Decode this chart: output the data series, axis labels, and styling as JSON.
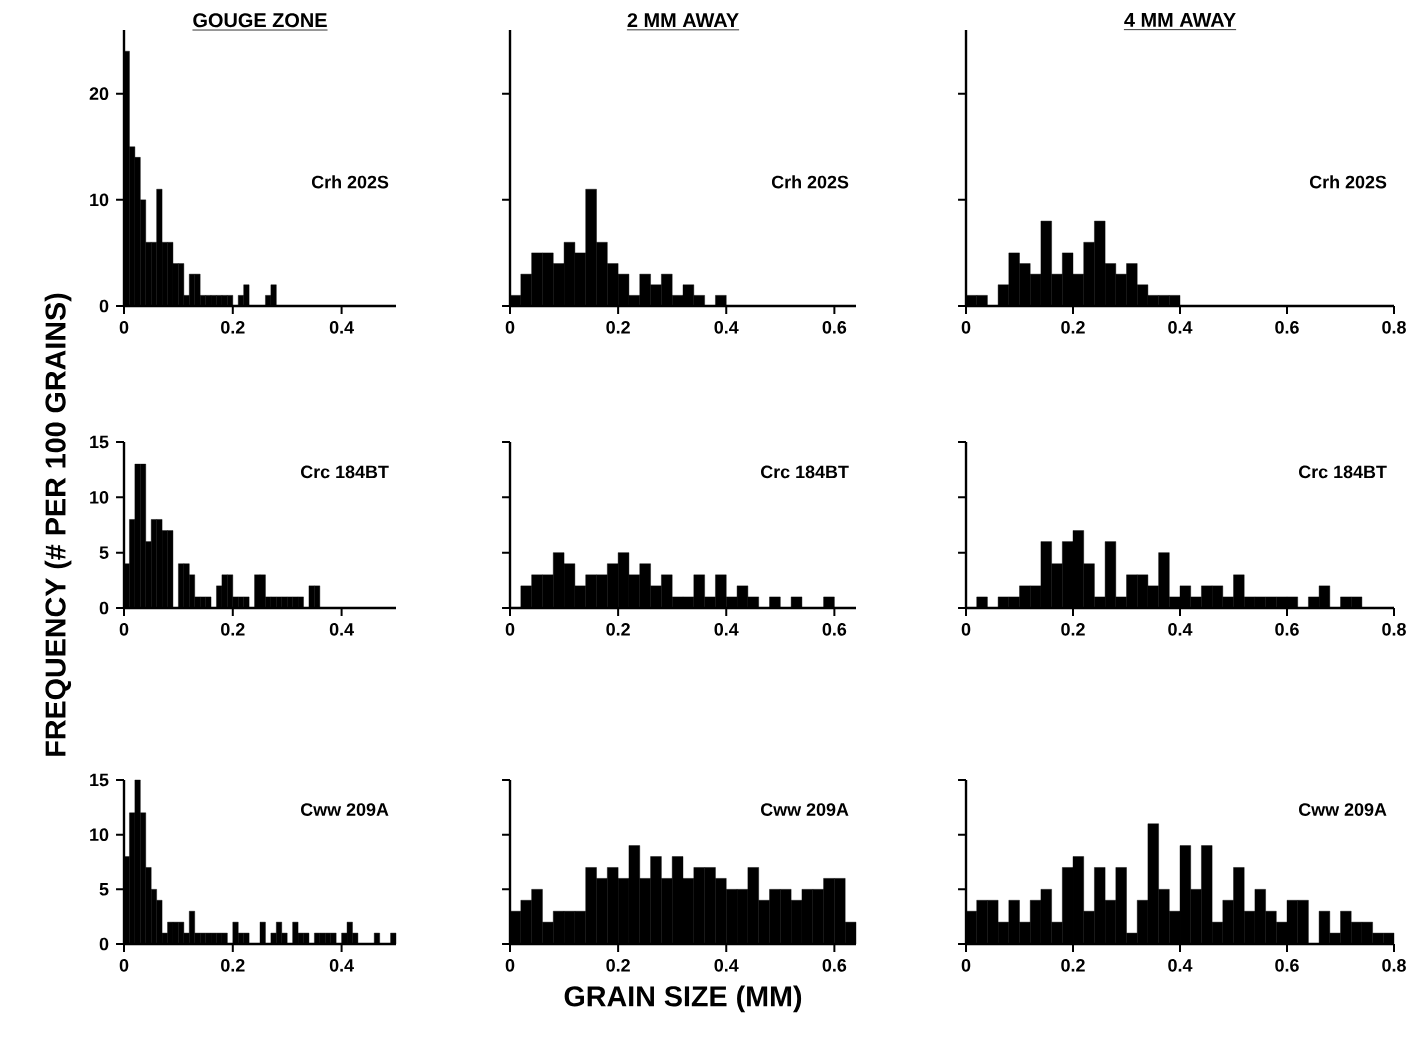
{
  "chart_data": [
    {
      "type": "histogram",
      "title": "GOUGE ZONE",
      "annotations": [
        "Crh 202S"
      ],
      "color": "#000000",
      "xlim": [
        0,
        0.5
      ],
      "xticks": [
        0,
        0.2,
        0.4
      ],
      "ylim": [
        0,
        26
      ],
      "yticks": [
        0,
        10,
        20
      ],
      "bins": [
        0,
        0.01,
        0.02,
        0.03,
        0.04,
        0.05,
        0.06,
        0.07,
        0.08,
        0.09,
        0.1,
        0.11,
        0.12,
        0.13,
        0.14,
        0.15,
        0.16,
        0.17,
        0.18,
        0.19,
        0.2,
        0.21,
        0.22,
        0.23,
        0.24,
        0.25,
        0.26,
        0.27,
        0.28,
        0.29,
        0.3,
        0.31,
        0.32,
        0.33,
        0.34,
        0.35,
        0.36,
        0.37,
        0.38,
        0.39,
        0.4,
        0.41,
        0.42,
        0.43,
        0.44,
        0.45,
        0.46,
        0.47,
        0.48,
        0.49,
        0.5
      ],
      "values": [
        24,
        15,
        14,
        10,
        6,
        6,
        11,
        6,
        6,
        4,
        4,
        1,
        3,
        3,
        1,
        1,
        1,
        1,
        1,
        1,
        0,
        1,
        2,
        0,
        0,
        0,
        1,
        2,
        0,
        0,
        0,
        0,
        0,
        0,
        0,
        0,
        0,
        0,
        0,
        0,
        0,
        0,
        0,
        0,
        0,
        0,
        0,
        0,
        0,
        0
      ]
    },
    {
      "type": "histogram",
      "title": "2 MM AWAY",
      "annotations": [
        "Crh 202S"
      ],
      "color": "#000000",
      "xlim": [
        0,
        0.64
      ],
      "xticks": [
        0,
        0.2,
        0.4,
        0.6
      ],
      "ylim": [
        0,
        26
      ],
      "yticks": [
        0,
        10,
        20
      ],
      "tick_labels": "x",
      "bins": [
        0,
        0.02,
        0.04,
        0.06,
        0.08,
        0.1,
        0.12,
        0.14,
        0.16,
        0.18,
        0.2,
        0.22,
        0.24,
        0.26,
        0.28,
        0.3,
        0.32,
        0.34,
        0.36,
        0.38,
        0.4,
        0.42,
        0.44,
        0.46,
        0.48,
        0.5,
        0.52,
        0.54,
        0.56,
        0.58,
        0.6,
        0.62,
        0.64
      ],
      "values": [
        1,
        3,
        5,
        5,
        4,
        6,
        5,
        11,
        6,
        4,
        3,
        1,
        3,
        2,
        3,
        1,
        2,
        1,
        0,
        1,
        0,
        0,
        0,
        0,
        0,
        0,
        0,
        0,
        0,
        0,
        0,
        0
      ]
    },
    {
      "type": "histogram",
      "title": "4 MM AWAY",
      "annotations": [
        "Crh 202S"
      ],
      "color": "#000000",
      "xlim": [
        0,
        0.8
      ],
      "xticks": [
        0,
        0.2,
        0.4,
        0.6,
        0.8
      ],
      "ylim": [
        0,
        26
      ],
      "yticks": [
        0,
        10,
        20
      ],
      "tick_labels": "x",
      "bins": [
        0,
        0.02,
        0.04,
        0.06,
        0.08,
        0.1,
        0.12,
        0.14,
        0.16,
        0.18,
        0.2,
        0.22,
        0.24,
        0.26,
        0.28,
        0.3,
        0.32,
        0.34,
        0.36,
        0.38,
        0.4,
        0.42,
        0.44,
        0.46,
        0.48,
        0.5,
        0.52,
        0.54,
        0.56,
        0.58,
        0.6,
        0.62,
        0.64,
        0.66,
        0.68,
        0.7,
        0.72,
        0.74,
        0.76,
        0.78,
        0.8
      ],
      "values": [
        1,
        1,
        0,
        2,
        5,
        4,
        3,
        8,
        3,
        5,
        3,
        6,
        8,
        4,
        3,
        4,
        2,
        1,
        1,
        1,
        0,
        0,
        0,
        0,
        0,
        0,
        0,
        0,
        0,
        0,
        0,
        0,
        0,
        0,
        0,
        0,
        0,
        0,
        0,
        0
      ]
    },
    {
      "type": "histogram",
      "ylabel": "FREQUENCY (# PER 100 GRAINS)",
      "annotations": [
        "Crc 184BT"
      ],
      "color": "#000000",
      "xlim": [
        0,
        0.5
      ],
      "xticks": [
        0,
        0.2,
        0.4
      ],
      "ylim": [
        0,
        15
      ],
      "yticks": [
        0,
        5,
        10,
        15
      ],
      "bins": [
        0,
        0.01,
        0.02,
        0.03,
        0.04,
        0.05,
        0.06,
        0.07,
        0.08,
        0.09,
        0.1,
        0.11,
        0.12,
        0.13,
        0.14,
        0.15,
        0.16,
        0.17,
        0.18,
        0.19,
        0.2,
        0.21,
        0.22,
        0.23,
        0.24,
        0.25,
        0.26,
        0.27,
        0.28,
        0.29,
        0.3,
        0.31,
        0.32,
        0.33,
        0.34,
        0.35,
        0.36,
        0.37,
        0.38,
        0.39,
        0.4,
        0.41,
        0.42,
        0.43,
        0.44,
        0.45,
        0.46,
        0.47,
        0.48,
        0.49,
        0.5
      ],
      "values": [
        4,
        8,
        13,
        13,
        6,
        8,
        8,
        7,
        7,
        0,
        4,
        4,
        3,
        1,
        1,
        1,
        0,
        2,
        3,
        3,
        1,
        1,
        1,
        0,
        3,
        3,
        1,
        1,
        1,
        1,
        1,
        1,
        1,
        0,
        2,
        2,
        0,
        0,
        0,
        0,
        0,
        0,
        0,
        0,
        0,
        0,
        0,
        0,
        0,
        0
      ]
    },
    {
      "type": "histogram",
      "annotations": [
        "Crc 184BT"
      ],
      "color": "#000000",
      "xlim": [
        0,
        0.64
      ],
      "xticks": [
        0,
        0.2,
        0.4,
        0.6
      ],
      "ylim": [
        0,
        15
      ],
      "yticks": [
        0,
        5,
        10,
        15
      ],
      "tick_labels": "x",
      "bins": [
        0,
        0.02,
        0.04,
        0.06,
        0.08,
        0.1,
        0.12,
        0.14,
        0.16,
        0.18,
        0.2,
        0.22,
        0.24,
        0.26,
        0.28,
        0.3,
        0.32,
        0.34,
        0.36,
        0.38,
        0.4,
        0.42,
        0.44,
        0.46,
        0.48,
        0.5,
        0.52,
        0.54,
        0.56,
        0.58,
        0.6,
        0.62,
        0.64
      ],
      "values": [
        0,
        2,
        3,
        3,
        5,
        4,
        2,
        3,
        3,
        4,
        5,
        3,
        4,
        2,
        3,
        1,
        1,
        3,
        1,
        3,
        1,
        2,
        1,
        0,
        1,
        0,
        1,
        0,
        0,
        1,
        0,
        0
      ]
    },
    {
      "type": "histogram",
      "annotations": [
        "Crc 184BT"
      ],
      "color": "#000000",
      "xlim": [
        0,
        0.8
      ],
      "xticks": [
        0,
        0.2,
        0.4,
        0.6,
        0.8
      ],
      "ylim": [
        0,
        15
      ],
      "yticks": [
        0,
        5,
        10,
        15
      ],
      "tick_labels": "x",
      "bins": [
        0,
        0.02,
        0.04,
        0.06,
        0.08,
        0.1,
        0.12,
        0.14,
        0.16,
        0.18,
        0.2,
        0.22,
        0.24,
        0.26,
        0.28,
        0.3,
        0.32,
        0.34,
        0.36,
        0.38,
        0.4,
        0.42,
        0.44,
        0.46,
        0.48,
        0.5,
        0.52,
        0.54,
        0.56,
        0.58,
        0.6,
        0.62,
        0.64,
        0.66,
        0.68,
        0.7,
        0.72,
        0.74,
        0.76,
        0.78,
        0.8
      ],
      "values": [
        0,
        1,
        0,
        1,
        1,
        2,
        2,
        6,
        4,
        6,
        7,
        4,
        1,
        6,
        1,
        3,
        3,
        2,
        5,
        1,
        2,
        1,
        2,
        2,
        1,
        3,
        1,
        1,
        1,
        1,
        1,
        0,
        1,
        2,
        0,
        1,
        1,
        0,
        0,
        0
      ]
    },
    {
      "type": "histogram",
      "annotations": [
        "Cww 209A"
      ],
      "color": "#000000",
      "xlim": [
        0,
        0.5
      ],
      "xticks": [
        0,
        0.2,
        0.4
      ],
      "ylim": [
        0,
        15
      ],
      "yticks": [
        0,
        5,
        10,
        15
      ],
      "bins": [
        0,
        0.01,
        0.02,
        0.03,
        0.04,
        0.05,
        0.06,
        0.07,
        0.08,
        0.09,
        0.1,
        0.11,
        0.12,
        0.13,
        0.14,
        0.15,
        0.16,
        0.17,
        0.18,
        0.19,
        0.2,
        0.21,
        0.22,
        0.23,
        0.24,
        0.25,
        0.26,
        0.27,
        0.28,
        0.29,
        0.3,
        0.31,
        0.32,
        0.33,
        0.34,
        0.35,
        0.36,
        0.37,
        0.38,
        0.39,
        0.4,
        0.41,
        0.42,
        0.43,
        0.44,
        0.45,
        0.46,
        0.47,
        0.48,
        0.49,
        0.5
      ],
      "values": [
        8,
        12,
        15,
        12,
        7,
        5,
        4,
        1,
        2,
        2,
        2,
        1,
        3,
        1,
        1,
        1,
        1,
        1,
        1,
        0,
        2,
        1,
        1,
        0,
        0,
        2,
        0,
        1,
        2,
        1,
        0,
        2,
        1,
        1,
        0,
        1,
        1,
        1,
        1,
        0,
        1,
        2,
        1,
        0,
        0,
        0,
        1,
        0,
        0,
        1
      ]
    },
    {
      "type": "histogram",
      "xlabel": "GRAIN SIZE (MM)",
      "annotations": [
        "Cww 209A"
      ],
      "color": "#000000",
      "xlim": [
        0,
        0.64
      ],
      "xticks": [
        0,
        0.2,
        0.4,
        0.6
      ],
      "ylim": [
        0,
        15
      ],
      "yticks": [
        0,
        5,
        10,
        15
      ],
      "tick_labels": "x",
      "bins": [
        0,
        0.02,
        0.04,
        0.06,
        0.08,
        0.1,
        0.12,
        0.14,
        0.16,
        0.18,
        0.2,
        0.22,
        0.24,
        0.26,
        0.28,
        0.3,
        0.32,
        0.34,
        0.36,
        0.38,
        0.4,
        0.42,
        0.44,
        0.46,
        0.48,
        0.5,
        0.52,
        0.54,
        0.56,
        0.58,
        0.6,
        0.62,
        0.64
      ],
      "values": [
        3,
        4,
        5,
        2,
        3,
        3,
        3,
        7,
        6,
        7,
        6,
        9,
        6,
        8,
        6,
        8,
        6,
        7,
        7,
        6,
        5,
        5,
        7,
        4,
        5,
        5,
        4,
        5,
        5,
        6,
        6,
        2
      ]
    },
    {
      "type": "histogram",
      "annotations": [
        "Cww 209A"
      ],
      "color": "#000000",
      "xlim": [
        0,
        0.8
      ],
      "xticks": [
        0,
        0.2,
        0.4,
        0.6,
        0.8
      ],
      "ylim": [
        0,
        15
      ],
      "yticks": [
        0,
        5,
        10,
        15
      ],
      "tick_labels": "x",
      "bins": [
        0,
        0.02,
        0.04,
        0.06,
        0.08,
        0.1,
        0.12,
        0.14,
        0.16,
        0.18,
        0.2,
        0.22,
        0.24,
        0.26,
        0.28,
        0.3,
        0.32,
        0.34,
        0.36,
        0.38,
        0.4,
        0.42,
        0.44,
        0.46,
        0.48,
        0.5,
        0.52,
        0.54,
        0.56,
        0.58,
        0.6,
        0.62,
        0.64,
        0.66,
        0.68,
        0.7,
        0.72,
        0.74,
        0.76,
        0.78,
        0.8
      ],
      "values": [
        3,
        4,
        4,
        2,
        4,
        2,
        4,
        5,
        2,
        7,
        8,
        3,
        7,
        4,
        7,
        1,
        4,
        11,
        5,
        3,
        9,
        5,
        9,
        2,
        4,
        7,
        3,
        5,
        3,
        2,
        4,
        4,
        0,
        3,
        1,
        3,
        2,
        2,
        1,
        1
      ]
    }
  ]
}
